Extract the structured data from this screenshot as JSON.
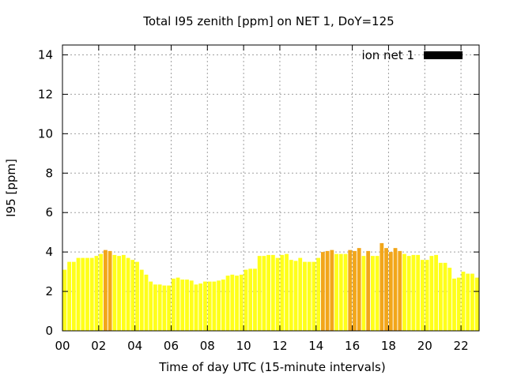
{
  "chart_data": {
    "type": "bar",
    "title": "Total I95 zenith [ppm] on NET 1, DoY=125",
    "xlabel": "Time of day UTC (15-minute intervals)",
    "ylabel": "I95 [ppm]",
    "xlim": [
      0,
      23
    ],
    "ylim": [
      0,
      14.5
    ],
    "x_ticks": [
      0,
      2,
      4,
      6,
      8,
      10,
      12,
      14,
      16,
      18,
      20,
      22
    ],
    "x_tick_labels": [
      "00",
      "02",
      "04",
      "06",
      "08",
      "10",
      "12",
      "14",
      "16",
      "18",
      "20",
      "22"
    ],
    "y_ticks": [
      0,
      2,
      4,
      6,
      8,
      10,
      12,
      14
    ],
    "y_tick_labels": [
      "0",
      "2",
      "4",
      "6",
      "8",
      "10",
      "12",
      "14"
    ],
    "grid": true,
    "legend": {
      "position": "top-right",
      "label": "ion net 1",
      "color": "#000000"
    },
    "colors": {
      "normal": "#ffff1a",
      "elevated": "#f2a61a",
      "threshold": 4.0
    },
    "series": [
      {
        "name": "ion net 1",
        "bar_width_hours": 0.21,
        "x": [
          0.125,
          0.375,
          0.625,
          0.875,
          1.125,
          1.375,
          1.625,
          1.875,
          2.125,
          2.375,
          2.625,
          2.875,
          3.125,
          3.375,
          3.625,
          3.875,
          4.125,
          4.375,
          4.625,
          4.875,
          5.125,
          5.375,
          5.625,
          5.875,
          6.125,
          6.375,
          6.625,
          6.875,
          7.125,
          7.375,
          7.625,
          7.875,
          8.125,
          8.375,
          8.625,
          8.875,
          9.125,
          9.375,
          9.625,
          9.875,
          10.125,
          10.375,
          10.625,
          10.875,
          11.125,
          11.375,
          11.625,
          11.875,
          12.125,
          12.375,
          12.625,
          12.875,
          13.125,
          13.375,
          13.625,
          13.875,
          14.125,
          14.375,
          14.625,
          14.875,
          15.125,
          15.375,
          15.625,
          15.875,
          16.125,
          16.375,
          16.625,
          16.875,
          17.125,
          17.375,
          17.625,
          17.875,
          18.125,
          18.375,
          18.625,
          18.875,
          19.125,
          19.375,
          19.625,
          19.875,
          20.125,
          20.375,
          20.625,
          20.875,
          21.125,
          21.375,
          21.625,
          21.875,
          22.125,
          22.375,
          22.625,
          22.875
        ],
        "values": [
          3.1,
          3.5,
          3.5,
          3.7,
          3.7,
          3.7,
          3.7,
          3.8,
          3.9,
          4.1,
          4.05,
          3.85,
          3.8,
          3.85,
          3.7,
          3.6,
          3.5,
          3.1,
          2.85,
          2.5,
          2.35,
          2.35,
          2.3,
          2.3,
          2.65,
          2.7,
          2.6,
          2.6,
          2.55,
          2.35,
          2.4,
          2.5,
          2.5,
          2.5,
          2.55,
          2.6,
          2.8,
          2.85,
          2.8,
          2.85,
          3.1,
          3.15,
          3.15,
          3.8,
          3.8,
          3.85,
          3.85,
          3.7,
          3.85,
          3.9,
          3.6,
          3.55,
          3.7,
          3.5,
          3.5,
          3.5,
          3.7,
          4.0,
          4.05,
          4.1,
          3.9,
          3.9,
          3.9,
          4.1,
          4.05,
          4.2,
          3.8,
          4.05,
          3.8,
          3.8,
          4.45,
          4.2,
          4.0,
          4.2,
          4.05,
          3.9,
          3.8,
          3.85,
          3.85,
          3.6,
          3.6,
          3.8,
          3.85,
          3.45,
          3.45,
          3.2,
          2.65,
          2.7,
          3.0,
          2.9,
          2.9,
          2.7
        ]
      }
    ]
  }
}
